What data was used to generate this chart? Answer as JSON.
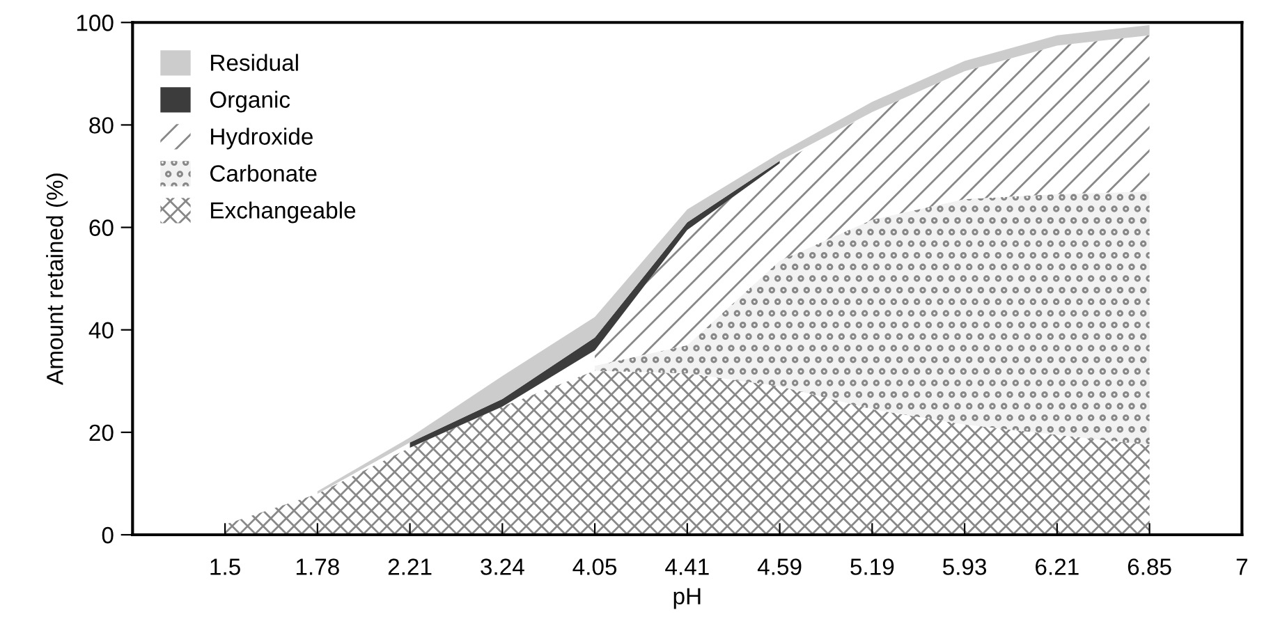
{
  "chart_data": {
    "type": "area",
    "stacked": true,
    "xlabel": "pH",
    "ylabel": "Amount retained (%)",
    "categories": [
      "1.5",
      "1.78",
      "2.21",
      "3.24",
      "4.05",
      "4.41",
      "4.59",
      "5.19",
      "5.93",
      "6.21",
      "6.85",
      "7"
    ],
    "series": [
      {
        "name": "Exchangeable",
        "color": "#ffffff",
        "values": [
          2,
          8,
          17,
          25,
          32,
          31.5,
          29,
          24.5,
          21.5,
          19.5,
          17.5,
          null
        ]
      },
      {
        "name": "Carbonate",
        "color": "#f2f2f2",
        "values": [
          null,
          null,
          null,
          null,
          1,
          5.5,
          24.5,
          37,
          44,
          47,
          49.5,
          null
        ]
      },
      {
        "name": "Hydroxide",
        "color": "#ffffff",
        "values": [
          null,
          null,
          null,
          null,
          3,
          22.5,
          19,
          21,
          25,
          29,
          30.5,
          null
        ]
      },
      {
        "name": "Organic",
        "color": "#3c3c3c",
        "values": [
          null,
          null,
          1,
          1.5,
          2.5,
          1.5,
          0.5,
          null,
          null,
          null,
          null,
          null
        ]
      },
      {
        "name": "Residual",
        "color": "#cccccc",
        "values": [
          null,
          0.5,
          1,
          4.5,
          4,
          2.5,
          1.5,
          2,
          2,
          2,
          2,
          null
        ]
      }
    ],
    "ylim": [
      0,
      100
    ],
    "yticks": [
      0,
      20,
      40,
      60,
      80,
      100
    ],
    "grid": false,
    "legend": "top left"
  }
}
